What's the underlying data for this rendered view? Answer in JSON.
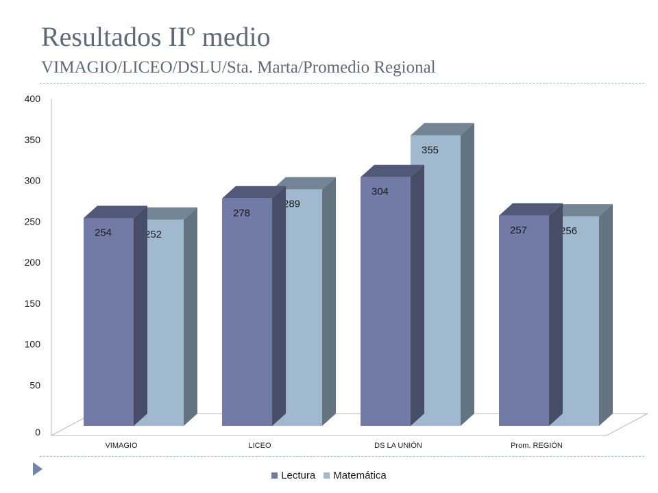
{
  "slide": {
    "title": "Resultados IIº medio",
    "subtitle": "VIMAGIO/LICEO/DSLU/Sta. Marta/Promedio Regional"
  },
  "colors": {
    "lectura": "#727ba6",
    "matematica": "#a0b9ce",
    "divider": "#9fb8c8",
    "title": "#60697a"
  },
  "chart_data": {
    "type": "bar",
    "style": "3d-clustered-column",
    "title": "",
    "xlabel": "",
    "ylabel": "",
    "categories": [
      "VIMAGIO",
      "LICEO",
      "DS LA UNIÓN",
      "Prom. REGIÓN"
    ],
    "series": [
      {
        "name": "Lectura",
        "values": [
          254,
          278,
          304,
          257
        ]
      },
      {
        "name": "Matemática",
        "values": [
          252,
          289,
          355,
          256
        ]
      }
    ],
    "ylim": [
      0,
      400
    ],
    "yticks": [
      "0",
      "50",
      "100",
      "150",
      "200",
      "250",
      "300",
      "350",
      "400"
    ],
    "data_labels": true,
    "grid": false,
    "legend_position": "bottom"
  }
}
